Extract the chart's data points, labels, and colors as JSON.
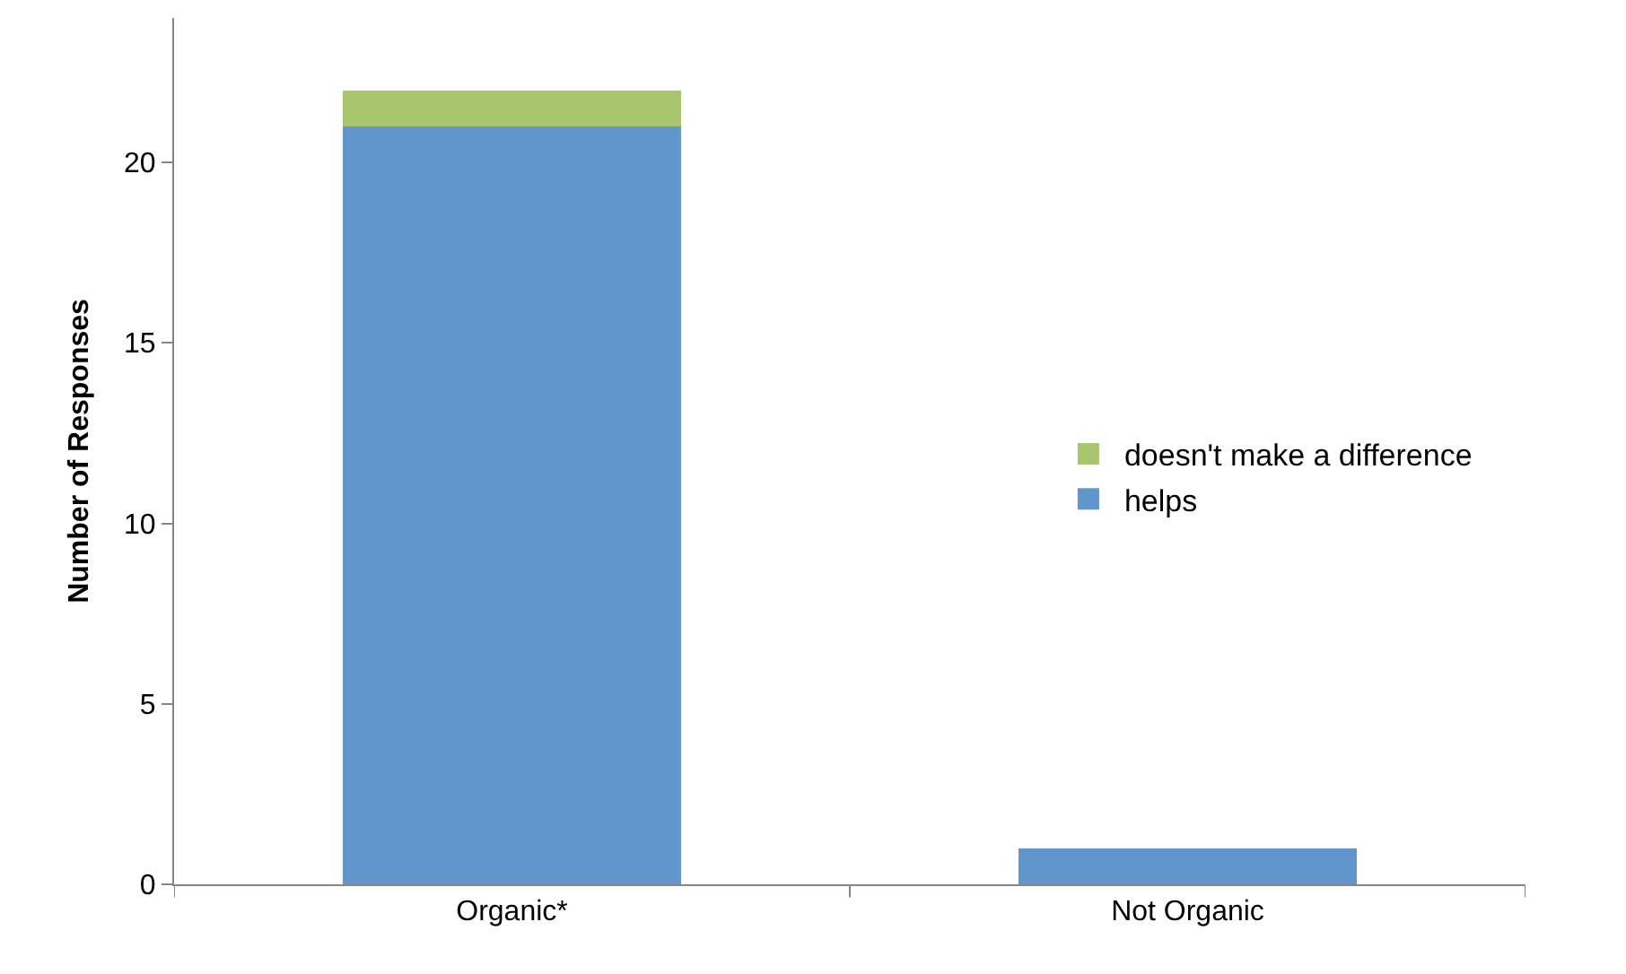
{
  "chart_data": {
    "type": "bar",
    "stacked": true,
    "ylabel": "Number of Responses",
    "categories": [
      "Organic*",
      "Not Organic"
    ],
    "series": [
      {
        "name": "helps",
        "color": "#6096cb",
        "values": [
          21,
          1
        ]
      },
      {
        "name": "doesn't make a difference",
        "color": "#a7c66d",
        "values": [
          1,
          0
        ]
      }
    ],
    "ylim": [
      0,
      24
    ],
    "yticks": [
      0,
      5,
      10,
      15,
      20
    ],
    "legend": "right"
  }
}
